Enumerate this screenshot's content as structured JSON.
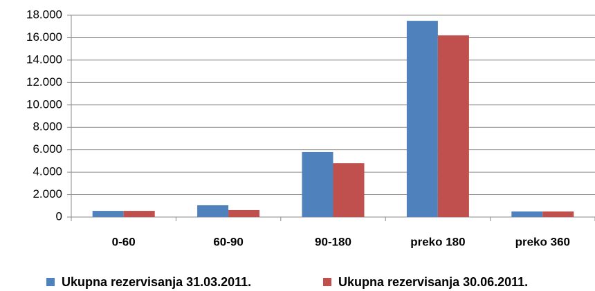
{
  "chart_data": {
    "type": "bar",
    "categories": [
      "0-60",
      "60-90",
      "90-180",
      "preko 180",
      "preko 360"
    ],
    "series": [
      {
        "name": "Ukupna rezervisanja 31.03.2011.",
        "color": "#4f81bd",
        "values": [
          550,
          1050,
          5800,
          17500,
          500
        ]
      },
      {
        "name": "Ukupna rezervisanja 30.06.2011.",
        "color": "#c0504d",
        "values": [
          550,
          620,
          4800,
          16200,
          500
        ]
      }
    ],
    "ylim": [
      0,
      18000
    ],
    "yticks": [
      0,
      {
        "value": 2000,
        "label": "2.000"
      },
      {
        "value": 4000,
        "label": "4.000"
      },
      {
        "value": 6000,
        "label": "6.000"
      },
      {
        "value": 8000,
        "label": "8.000"
      },
      {
        "value": 10000,
        "label": "10.000"
      },
      {
        "value": 12000,
        "label": "12.000"
      },
      {
        "value": 14000,
        "label": "14.000"
      },
      {
        "value": 16000,
        "label": "16.000"
      },
      {
        "value": 18000,
        "label": "18.000"
      }
    ],
    "grid": true,
    "legend": "bottom"
  }
}
